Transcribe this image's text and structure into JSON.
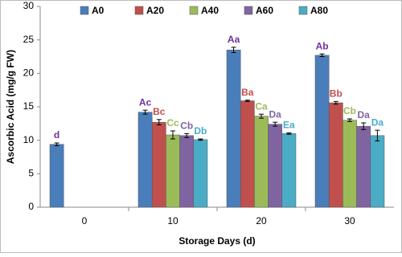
{
  "chart_data": {
    "type": "bar",
    "y_label": "Ascorbic Acid (mg/g FW)",
    "x_label": "Storage Days (d)",
    "categories": [
      "0",
      "10",
      "20",
      "30"
    ],
    "ylim": [
      0,
      30
    ],
    "yticks": [
      0,
      5,
      10,
      15,
      20,
      25,
      30
    ],
    "series": [
      {
        "name": "A0",
        "color": "#4a7ebb",
        "letter_color": "#7030a0",
        "values": [
          9.4,
          14.2,
          23.5,
          22.7
        ],
        "errors": [
          0.2,
          0.3,
          0.4,
          0.2
        ],
        "letters": [
          "d",
          "Ac",
          "Aa",
          "Ab"
        ]
      },
      {
        "name": "A20",
        "color": "#c0504d",
        "letter_color": "#c0504d",
        "values": [
          null,
          12.7,
          15.9,
          15.6
        ],
        "errors": [
          null,
          0.4,
          0.1,
          0.2
        ],
        "letters": [
          null,
          "Bc",
          "Ba",
          "Bb"
        ]
      },
      {
        "name": "A40",
        "color": "#9bbb59",
        "letter_color": "#9bbb59",
        "values": [
          null,
          10.8,
          13.6,
          13.0
        ],
        "errors": [
          null,
          0.6,
          0.3,
          0.2
        ],
        "letters": [
          null,
          "Cc",
          "Ca",
          "Cb"
        ]
      },
      {
        "name": "A60",
        "color": "#8064a2",
        "letter_color": "#8064a2",
        "values": [
          null,
          10.7,
          12.4,
          12.1
        ],
        "errors": [
          null,
          0.3,
          0.3,
          0.5
        ],
        "letters": [
          null,
          "Cb",
          "Da",
          "Da"
        ]
      },
      {
        "name": "A80",
        "color": "#4bacc6",
        "letter_color": "#4bacc6",
        "values": [
          null,
          10.1,
          11.0,
          10.7
        ],
        "errors": [
          null,
          0.1,
          0.1,
          0.8
        ],
        "letters": [
          null,
          "Db",
          "Ea",
          "Da"
        ]
      }
    ]
  }
}
